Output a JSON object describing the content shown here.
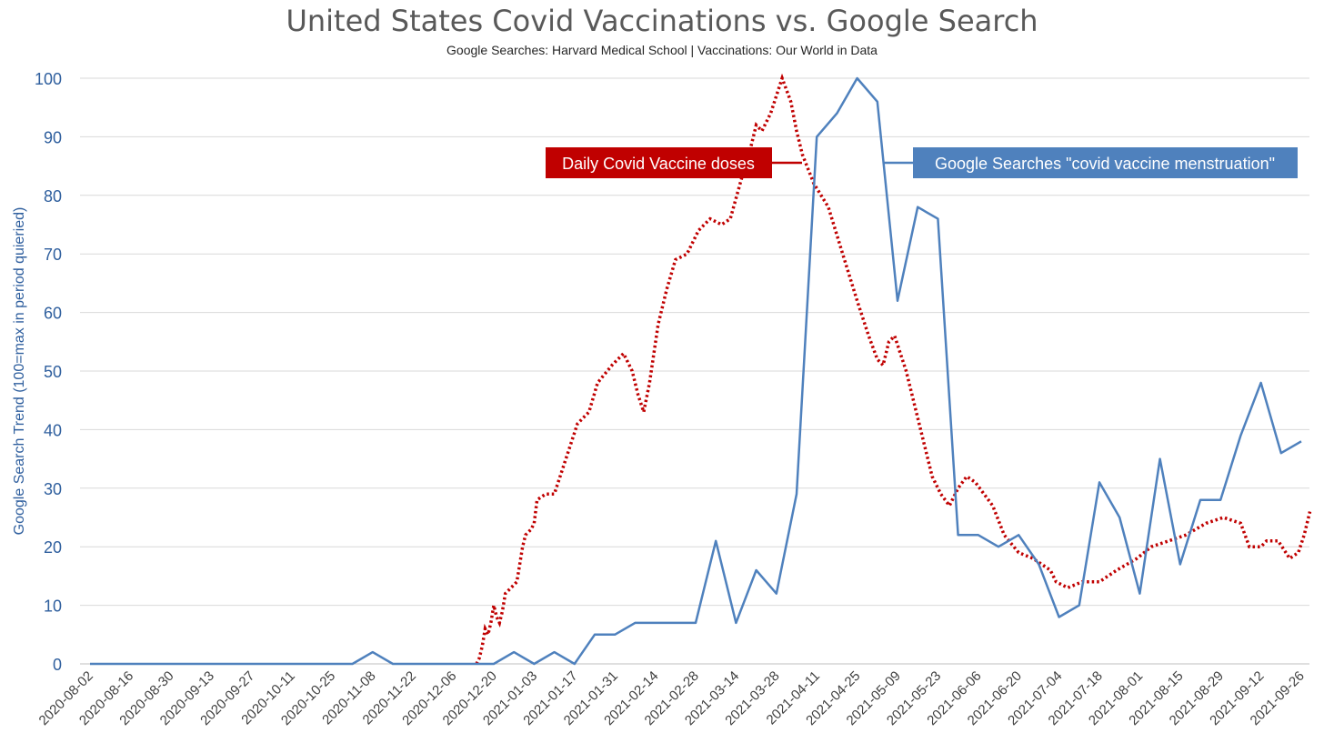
{
  "title": "United States Covid Vaccinations vs. Google Search",
  "subtitle": "Google Searches: Harvard Medical School  |  Vaccinations: Our World in Data",
  "chart_data": {
    "type": "line",
    "ylabel": "Google Search Trend (100=max in period quieried)",
    "ylim": [
      0,
      100
    ],
    "yticks": [
      0,
      10,
      20,
      30,
      40,
      50,
      60,
      70,
      80,
      90,
      100
    ],
    "grid": "horizontal",
    "xtick_labels": [
      "2020-08-02",
      "2020-08-16",
      "2020-08-30",
      "2020-09-13",
      "2020-09-27",
      "2020-10-11",
      "2020-10-25",
      "2020-11-08",
      "2020-11-22",
      "2020-12-06",
      "2020-12-20",
      "2021-01-03",
      "2021-01-17",
      "2021-01-31",
      "2021-02-14",
      "2021-02-28",
      "2021-03-14",
      "2021-03-28",
      "2021-04-11",
      "2021-04-25",
      "2021-05-09",
      "2021-05-23",
      "2021-06-06",
      "2021-06-20",
      "2021-07-04",
      "2021-07-18",
      "2021-08-01",
      "2021-08-15",
      "2021-08-29",
      "2021-09-12",
      "2021-09-26"
    ],
    "x": [
      "2020-08-02",
      "2020-08-09",
      "2020-08-16",
      "2020-08-23",
      "2020-08-30",
      "2020-09-06",
      "2020-09-13",
      "2020-09-20",
      "2020-09-27",
      "2020-10-04",
      "2020-10-11",
      "2020-10-18",
      "2020-10-25",
      "2020-11-01",
      "2020-11-08",
      "2020-11-15",
      "2020-11-22",
      "2020-11-29",
      "2020-12-06",
      "2020-12-13",
      "2020-12-20",
      "2020-12-27",
      "2021-01-03",
      "2021-01-10",
      "2021-01-17",
      "2021-01-24",
      "2021-01-31",
      "2021-02-07",
      "2021-02-14",
      "2021-02-21",
      "2021-02-28",
      "2021-03-07",
      "2021-03-14",
      "2021-03-21",
      "2021-03-28",
      "2021-04-04",
      "2021-04-11",
      "2021-04-18",
      "2021-04-25",
      "2021-05-02",
      "2021-05-09",
      "2021-05-16",
      "2021-05-23",
      "2021-05-30",
      "2021-06-06",
      "2021-06-13",
      "2021-06-20",
      "2021-06-27",
      "2021-07-04",
      "2021-07-11",
      "2021-07-18",
      "2021-07-25",
      "2021-08-01",
      "2021-08-08",
      "2021-08-15",
      "2021-08-22",
      "2021-08-29",
      "2021-09-05",
      "2021-09-12",
      "2021-09-19",
      "2021-09-26"
    ],
    "series": [
      {
        "name": "Google Searches \"covid vaccine menstruation\"",
        "style": "solid",
        "color": "#4f81bd",
        "values": [
          0,
          0,
          0,
          0,
          0,
          0,
          0,
          0,
          0,
          0,
          0,
          0,
          0,
          0,
          2,
          0,
          0,
          0,
          0,
          0,
          0,
          2,
          0,
          2,
          0,
          5,
          5,
          7,
          7,
          7,
          7,
          21,
          7,
          16,
          12,
          29,
          90,
          94,
          100,
          96,
          62,
          78,
          76,
          22,
          22,
          20,
          22,
          17,
          8,
          10,
          31,
          25,
          12,
          35,
          17,
          28,
          28,
          39,
          48,
          36,
          38
        ]
      },
      {
        "name": "Daily Covid Vaccine doses",
        "style": "dotted",
        "color": "#c00000",
        "points": [
          [
            "2020-12-14",
            0
          ],
          [
            "2020-12-15",
            1
          ],
          [
            "2020-12-16",
            3
          ],
          [
            "2020-12-17",
            6
          ],
          [
            "2020-12-18",
            5
          ],
          [
            "2020-12-19",
            7
          ],
          [
            "2020-12-20",
            10
          ],
          [
            "2020-12-21",
            8
          ],
          [
            "2020-12-22",
            7
          ],
          [
            "2020-12-23",
            9
          ],
          [
            "2020-12-24",
            12
          ],
          [
            "2020-12-26",
            13
          ],
          [
            "2020-12-28",
            14
          ],
          [
            "2020-12-30",
            20
          ],
          [
            "2020-12-31",
            22
          ],
          [
            "2021-01-02",
            23
          ],
          [
            "2021-01-03",
            24
          ],
          [
            "2021-01-04",
            28
          ],
          [
            "2021-01-07",
            29
          ],
          [
            "2021-01-10",
            29
          ],
          [
            "2021-01-14",
            35
          ],
          [
            "2021-01-18",
            41
          ],
          [
            "2021-01-20",
            42
          ],
          [
            "2021-01-22",
            43
          ],
          [
            "2021-01-25",
            48
          ],
          [
            "2021-01-30",
            51
          ],
          [
            "2021-02-03",
            53
          ],
          [
            "2021-02-06",
            50
          ],
          [
            "2021-02-08",
            46
          ],
          [
            "2021-02-10",
            43
          ],
          [
            "2021-02-12",
            48
          ],
          [
            "2021-02-15",
            58
          ],
          [
            "2021-02-18",
            64
          ],
          [
            "2021-02-21",
            69
          ],
          [
            "2021-02-25",
            70
          ],
          [
            "2021-03-01",
            74
          ],
          [
            "2021-03-05",
            76
          ],
          [
            "2021-03-09",
            75
          ],
          [
            "2021-03-12",
            76
          ],
          [
            "2021-03-16",
            83
          ],
          [
            "2021-03-19",
            88
          ],
          [
            "2021-03-21",
            92
          ],
          [
            "2021-03-23",
            91
          ],
          [
            "2021-03-26",
            94
          ],
          [
            "2021-03-28",
            97
          ],
          [
            "2021-03-30",
            100
          ],
          [
            "2021-04-02",
            96
          ],
          [
            "2021-04-04",
            91
          ],
          [
            "2021-04-06",
            87
          ],
          [
            "2021-04-10",
            82
          ],
          [
            "2021-04-15",
            78
          ],
          [
            "2021-04-20",
            70
          ],
          [
            "2021-04-25",
            62
          ],
          [
            "2021-04-29",
            56
          ],
          [
            "2021-05-02",
            52
          ],
          [
            "2021-05-04",
            51
          ],
          [
            "2021-05-06",
            55
          ],
          [
            "2021-05-08",
            56
          ],
          [
            "2021-05-12",
            50
          ],
          [
            "2021-05-17",
            40
          ],
          [
            "2021-05-21",
            32
          ],
          [
            "2021-05-24",
            29
          ],
          [
            "2021-05-27",
            27
          ],
          [
            "2021-05-30",
            30
          ],
          [
            "2021-06-02",
            32
          ],
          [
            "2021-06-05",
            31
          ],
          [
            "2021-06-08",
            29
          ],
          [
            "2021-06-11",
            27
          ],
          [
            "2021-06-15",
            22
          ],
          [
            "2021-06-20",
            19
          ],
          [
            "2021-06-25",
            18
          ],
          [
            "2021-07-01",
            16
          ],
          [
            "2021-07-03",
            14
          ],
          [
            "2021-07-07",
            13
          ],
          [
            "2021-07-12",
            14
          ],
          [
            "2021-07-18",
            14
          ],
          [
            "2021-07-24",
            16
          ],
          [
            "2021-07-31",
            18
          ],
          [
            "2021-08-05",
            20
          ],
          [
            "2021-08-11",
            21
          ],
          [
            "2021-08-17",
            22
          ],
          [
            "2021-08-24",
            24
          ],
          [
            "2021-08-30",
            25
          ],
          [
            "2021-09-05",
            24
          ],
          [
            "2021-09-08",
            20
          ],
          [
            "2021-09-12",
            20
          ],
          [
            "2021-09-14",
            21
          ],
          [
            "2021-09-18",
            21
          ],
          [
            "2021-09-22",
            18
          ],
          [
            "2021-09-25",
            19
          ],
          [
            "2021-09-27",
            22
          ],
          [
            "2021-09-29",
            26
          ]
        ]
      }
    ],
    "callouts": [
      {
        "text": "Daily Covid Vaccine doses",
        "color": "#c00000"
      },
      {
        "text": "Google Searches \"covid vaccine menstruation\"",
        "color": "#4f81bd"
      }
    ]
  }
}
